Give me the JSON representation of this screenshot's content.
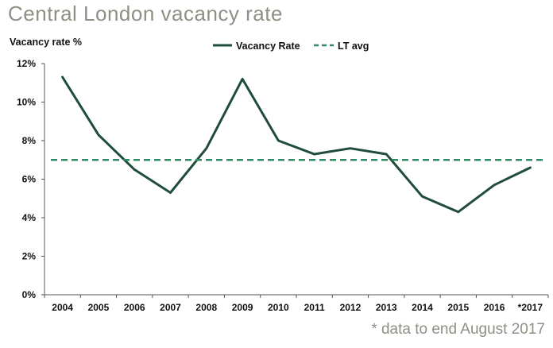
{
  "chart_title": "Central London vacancy rate",
  "footnote": "* data to end August 2017",
  "colors": {
    "series": "#1f4d3a",
    "avg": "#2e8a62",
    "axis": "#555555",
    "title": "#8f8f85"
  },
  "chart_data": {
    "type": "line",
    "title": "Central London vacancy rate",
    "xlabel": "",
    "ylabel": "Vacancy rate %",
    "ylim": [
      0,
      12
    ],
    "y_ticks": [
      "0%",
      "2%",
      "4%",
      "6%",
      "8%",
      "10%",
      "12%"
    ],
    "categories": [
      "2004",
      "2005",
      "2006",
      "2007",
      "2008",
      "2009",
      "2010",
      "2011",
      "2012",
      "2013",
      "2014",
      "2015",
      "2016",
      "*2017"
    ],
    "series": [
      {
        "name": "Vacancy Rate",
        "style": "solid",
        "values": [
          11.3,
          8.3,
          6.5,
          5.3,
          7.6,
          11.2,
          8.0,
          7.3,
          7.6,
          7.3,
          5.1,
          4.3,
          5.7,
          6.6
        ]
      },
      {
        "name": "LT avg",
        "style": "dashed",
        "values": [
          7.0,
          7.0,
          7.0,
          7.0,
          7.0,
          7.0,
          7.0,
          7.0,
          7.0,
          7.0,
          7.0,
          7.0,
          7.0,
          7.0
        ]
      }
    ],
    "legend_position": "top-center",
    "grid": false
  }
}
